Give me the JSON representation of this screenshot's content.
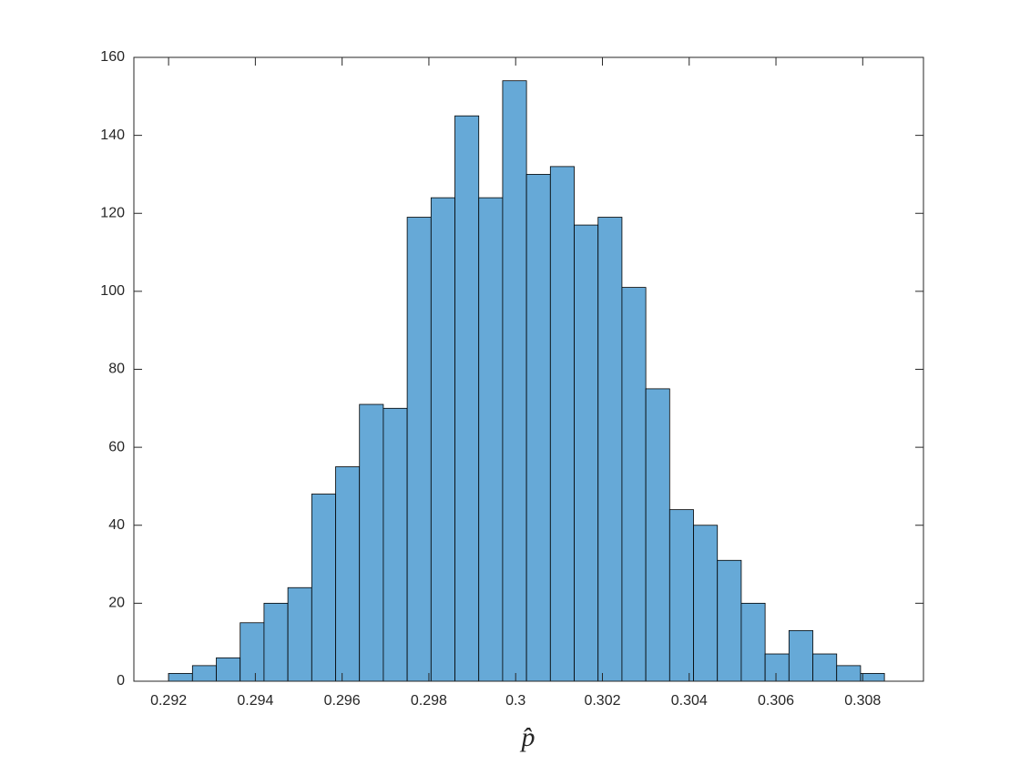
{
  "chart_data": {
    "type": "histogram",
    "xlabel": "p̂",
    "bins": [
      0.292,
      0.29255,
      0.2931,
      0.29365,
      0.2942,
      0.29475,
      0.2953,
      0.29585,
      0.2964,
      0.29695,
      0.2975,
      0.29805,
      0.2986,
      0.29915,
      0.2997,
      0.30025,
      0.3008,
      0.30135,
      0.3019,
      0.30245,
      0.303,
      0.30355,
      0.3041,
      0.30465,
      0.3052,
      0.30575,
      0.3063,
      0.30685,
      0.3074,
      0.30795,
      0.3085
    ],
    "values": [
      2,
      4,
      6,
      15,
      20,
      24,
      48,
      55,
      71,
      70,
      119,
      124,
      145,
      124,
      154,
      130,
      132,
      117,
      119,
      101,
      75,
      44,
      40,
      31,
      20,
      7,
      13,
      7,
      4,
      2
    ],
    "color": "#66a9d7",
    "xlim": [
      0.2912,
      0.3094
    ],
    "xticks": [
      0.292,
      0.294,
      0.296,
      0.298,
      0.3,
      0.302,
      0.304,
      0.306,
      0.308
    ],
    "ylim": [
      0,
      160
    ],
    "yticks": [
      0,
      20,
      40,
      60,
      80,
      100,
      120,
      140,
      160
    ],
    "grid": false
  }
}
